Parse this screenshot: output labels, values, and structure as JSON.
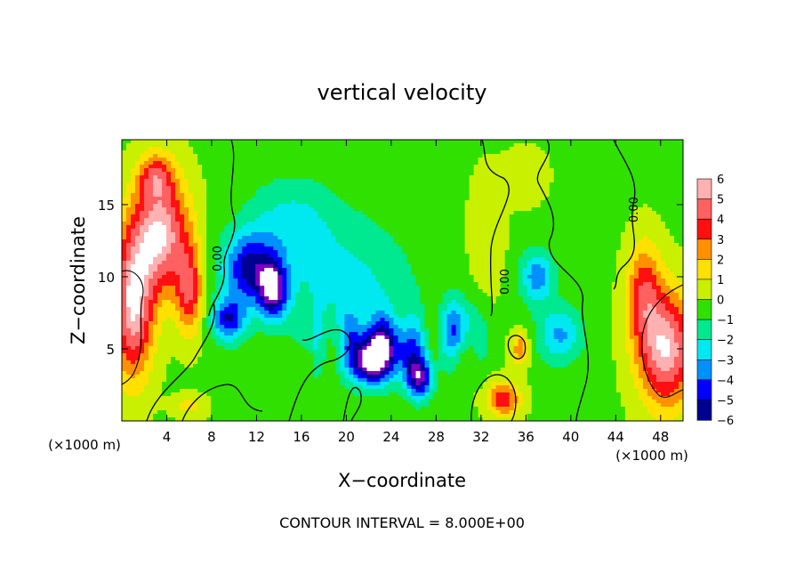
{
  "chart_data": {
    "type": "heatmap",
    "title": "vertical velocity",
    "xlabel": "X−coordinate",
    "ylabel": "Z−coordinate",
    "x_unit_left": "(×1000 m)",
    "x_unit_right": "(×1000 m)",
    "xlim": [
      0,
      50
    ],
    "ylim": [
      0,
      19.5
    ],
    "x_ticks": [
      4,
      8,
      12,
      16,
      20,
      24,
      28,
      32,
      36,
      40,
      44,
      48
    ],
    "y_ticks": [
      5,
      10,
      15
    ],
    "colorbar": {
      "levels": [
        6,
        5,
        4,
        3,
        2,
        1,
        0,
        -1,
        -2,
        -3,
        -4,
        -5,
        -6
      ],
      "labels": [
        "6",
        "5",
        "4",
        "3",
        "2",
        "1",
        "0",
        "−1",
        "−2",
        "−3",
        "−4",
        "−5",
        "−6"
      ],
      "colors": [
        "#ffb0b0",
        "#ff6060",
        "#ff1010",
        "#ff9000",
        "#ffe000",
        "#c8f000",
        "#30e000",
        "#00e890",
        "#00e8f0",
        "#0090ff",
        "#0000ff",
        "#000090",
        "#8000c0"
      ]
    },
    "contour_label": "0.00",
    "footer": "CONTOUR INTERVAL = 8.000E+00",
    "features": [
      {
        "x": 3.5,
        "z": 13,
        "w": 6,
        "sx": 2.5,
        "sz": 4
      },
      {
        "x": 1.0,
        "z": 8,
        "w": 6,
        "sx": 1.8,
        "sz": 5
      },
      {
        "x": 6.0,
        "z": 9,
        "w": 4,
        "sx": 1.2,
        "sz": 3
      },
      {
        "x": 3.0,
        "z": 17,
        "w": 3,
        "sx": 1.5,
        "sz": 1.5
      },
      {
        "x": 48.5,
        "z": 5,
        "w": 6,
        "sx": 2.5,
        "sz": 4
      },
      {
        "x": 46.5,
        "z": 9,
        "w": 3.5,
        "sx": 1.5,
        "sz": 3.5
      },
      {
        "x": 11.5,
        "z": 10.5,
        "w": -5,
        "sx": 2.5,
        "sz": 2.5
      },
      {
        "x": 13.5,
        "z": 9,
        "w": -5.5,
        "sx": 1.2,
        "sz": 1.8
      },
      {
        "x": 9.5,
        "z": 7,
        "w": -4.5,
        "sx": 1.5,
        "sz": 1.5
      },
      {
        "x": 23.5,
        "z": 5,
        "w": -5,
        "sx": 3,
        "sz": 2
      },
      {
        "x": 26.5,
        "z": 3,
        "w": -5.5,
        "sx": 1.2,
        "sz": 1.5
      },
      {
        "x": 22,
        "z": 4,
        "w": -4.5,
        "sx": 1.5,
        "sz": 1.5
      },
      {
        "x": 30,
        "z": 6.5,
        "w": -3.5,
        "sx": 1.5,
        "sz": 2
      },
      {
        "x": 37,
        "z": 10,
        "w": -3.5,
        "sx": 1.5,
        "sz": 1.8
      },
      {
        "x": 39,
        "z": 6,
        "w": -3,
        "sx": 2,
        "sz": 2
      },
      {
        "x": 20,
        "z": 9,
        "w": -2.2,
        "sx": 6,
        "sz": 5
      },
      {
        "x": 15,
        "z": 14,
        "w": -1.8,
        "sx": 4,
        "sz": 3
      },
      {
        "x": 34,
        "z": 1.5,
        "w": 4,
        "sx": 1.5,
        "sz": 1.2
      },
      {
        "x": 35.5,
        "z": 5,
        "w": 3,
        "sx": 0.8,
        "sz": 1.2
      },
      {
        "x": 32.5,
        "z": 13,
        "w": 1.2,
        "sx": 1.5,
        "sz": 4
      },
      {
        "x": 36,
        "z": 17,
        "w": 0.8,
        "sx": 2,
        "sz": 2
      },
      {
        "x": 6,
        "z": 1,
        "w": 1.5,
        "sx": 1.5,
        "sz": 0.8
      }
    ]
  }
}
